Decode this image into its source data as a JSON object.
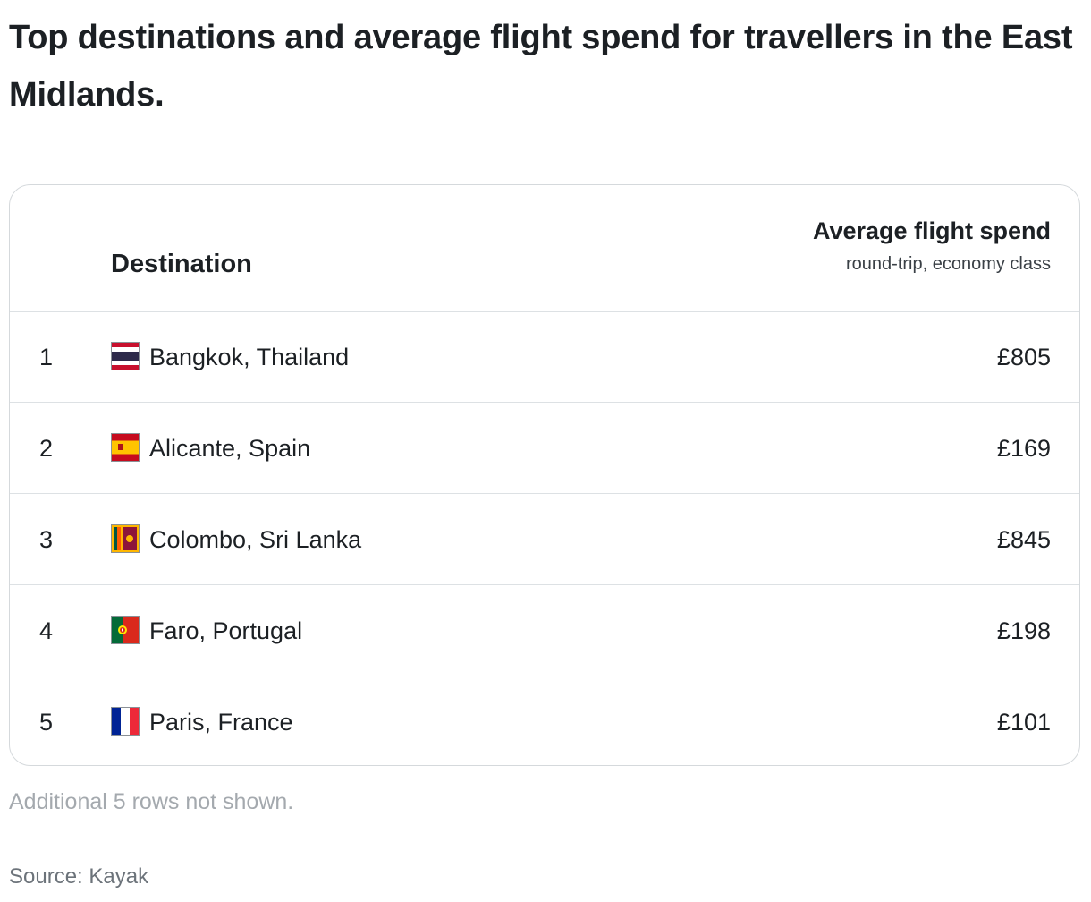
{
  "title": "Top destinations and average flight spend for travellers in the East Midlands.",
  "table": {
    "header_destination": "Destination",
    "header_spend": "Average flight spend",
    "header_spend_sub": "round-trip, economy class",
    "rows": [
      {
        "rank": "1",
        "destination": "Bangkok, Thailand",
        "price": "£805",
        "flag": "thailand-flag-icon"
      },
      {
        "rank": "2",
        "destination": "Alicante, Spain",
        "price": "£169",
        "flag": "spain-flag-icon"
      },
      {
        "rank": "3",
        "destination": "Colombo, Sri Lanka",
        "price": "£845",
        "flag": "sri-lanka-flag-icon"
      },
      {
        "rank": "4",
        "destination": "Faro, Portugal",
        "price": "£198",
        "flag": "portugal-flag-icon"
      },
      {
        "rank": "5",
        "destination": "Paris, France",
        "price": "£101",
        "flag": "france-flag-icon"
      }
    ]
  },
  "note": "Additional 5 rows not shown.",
  "source": "Source: Kayak",
  "colors": {
    "text": "#1c2024",
    "border": "#d5d9dc",
    "muted": "#a4a9ae",
    "source": "#6c737a"
  }
}
